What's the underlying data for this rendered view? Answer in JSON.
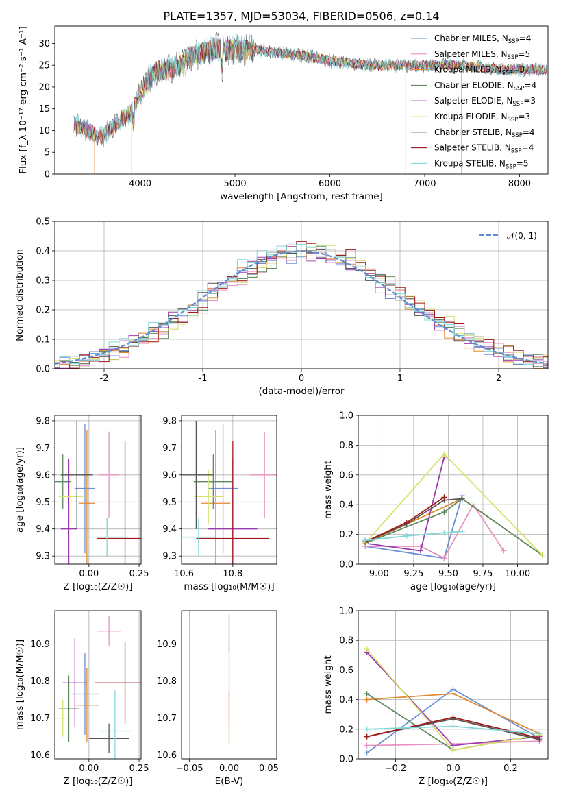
{
  "figure": {
    "title": "PLATE=1357, MJD=53034, FIBERID=0506, z=0.14"
  },
  "colors": [
    "#6a8fd6",
    "#e891c0",
    "#e08a30",
    "#5e8a60",
    "#9a3bb0",
    "#d8e26a",
    "#555555",
    "#a01a1a",
    "#80d8d8"
  ],
  "chart_data": [
    {
      "id": "spectrum",
      "type": "line",
      "xlabel": "wavelength [Angstrom, rest frame]",
      "ylabel": "Flux [f_λ 10⁻¹⁷ erg cm⁻² s⁻¹ A⁻¹]",
      "xlim": [
        3100,
        8300
      ],
      "ylim": [
        0,
        34
      ],
      "xticks": [
        4000,
        5000,
        6000,
        7000,
        8000
      ],
      "yticks": [
        0,
        5,
        10,
        15,
        20,
        25,
        30
      ],
      "grid": false,
      "legend": "upper right",
      "x": [
        3300,
        3400,
        3500,
        3600,
        3700,
        3800,
        3900,
        4000,
        4100,
        4200,
        4300,
        4400,
        4500,
        4600,
        4700,
        4800,
        4900,
        5000,
        5200,
        5400,
        5600,
        5800,
        6000,
        6200,
        6400,
        6600,
        6800,
        7000,
        7200,
        7400,
        7600,
        7800,
        8000,
        8200
      ],
      "y": [
        11.5,
        10.5,
        9.5,
        8.5,
        10.5,
        12.5,
        14,
        19,
        22,
        24,
        24,
        24.5,
        26.5,
        27.5,
        28,
        29,
        28.5,
        28.5,
        28.5,
        28,
        27.5,
        27,
        26,
        25.5,
        25,
        25,
        25,
        25,
        25,
        25,
        24.5,
        24,
        24,
        24
      ],
      "series": [
        {
          "name": "Chabrier MILES, N_SSP=4",
          "label_main": "Chabrier MILES, N",
          "label_sub": "SSP",
          "label_tail": "=4"
        },
        {
          "name": "Salpeter MILES, N_SSP=5",
          "label_main": "Salpeter MILES, N",
          "label_sub": "SSP",
          "label_tail": "=5"
        },
        {
          "name": "Kroupa MILES, N_SSP=3",
          "label_main": "Kroupa MILES, N",
          "label_sub": "SSP",
          "label_tail": "=3"
        },
        {
          "name": "Chabrier ELODIE, N_SSP=4",
          "label_main": "Chabrier ELODIE, N",
          "label_sub": "SSP",
          "label_tail": "=4"
        },
        {
          "name": "Salpeter ELODIE, N_SSP=3",
          "label_main": "Salpeter ELODIE, N",
          "label_sub": "SSP",
          "label_tail": "=3"
        },
        {
          "name": "Kroupa ELODIE, N_SSP=3",
          "label_main": "Kroupa ELODIE, N",
          "label_sub": "SSP",
          "label_tail": "=3"
        },
        {
          "name": "Chabrier STELIB, N_SSP=4",
          "label_main": "Chabrier STELIB, N",
          "label_sub": "SSP",
          "label_tail": "=4"
        },
        {
          "name": "Salpeter STELIB, N_SSP=4",
          "label_main": "Salpeter STELIB, N",
          "label_sub": "SSP",
          "label_tail": "=4"
        },
        {
          "name": "Kroupa STELIB, N_SSP=5",
          "label_main": "Kroupa STELIB, N",
          "label_sub": "SSP",
          "label_tail": "=5"
        }
      ],
      "range_edges": [
        {
          "series": 2,
          "x": 3520
        },
        {
          "series": 5,
          "x": 3910
        },
        {
          "series": 8,
          "x": 6800
        },
        {
          "series": 2,
          "x": 7390
        }
      ]
    },
    {
      "id": "residuals",
      "type": "line",
      "xlabel": "(data-model)/error",
      "ylabel": "Normed distribution",
      "xlim": [
        -2.5,
        2.5
      ],
      "ylim": [
        0,
        0.5
      ],
      "xticks": [
        -2,
        -1,
        0,
        1,
        2
      ],
      "yticks": [
        0.0,
        0.1,
        0.2,
        0.3,
        0.4,
        0.5
      ],
      "grid": true,
      "legend": "upper right",
      "legend_label": "𝒩(0, 1)",
      "bin_width": 0.1,
      "note": "histograms approximately follow the standard normal curve"
    },
    {
      "id": "age-vs-Z",
      "type": "scatter",
      "xlabel": "Z [log₁₀(Z/Z☉)]",
      "ylabel": "age [log₁₀(age/yr)]",
      "xlim": [
        -0.17,
        0.26
      ],
      "ylim": [
        9.27,
        9.82
      ],
      "xticks": [
        -0.0,
        0.25
      ],
      "xtick_labels": [
        "0.00",
        "0.25"
      ],
      "yticks": [
        9.3,
        9.4,
        9.5,
        9.6,
        9.7,
        9.8
      ],
      "grid": true,
      "points": [
        {
          "x": -0.02,
          "y": 9.55,
          "xerr": 0.05,
          "yerr": 0.24
        },
        {
          "x": 0.1,
          "y": 9.6,
          "xerr": 0.05,
          "yerr": 0.16
        },
        {
          "x": -0.01,
          "y": 9.495,
          "xerr": 0.04,
          "yerr": 0.27
        },
        {
          "x": -0.13,
          "y": 9.575,
          "xerr": 0.04,
          "yerr": 0.1
        },
        {
          "x": -0.1,
          "y": 9.4,
          "xerr": 0.04,
          "yerr": 0.26
        },
        {
          "x": -0.09,
          "y": 9.52,
          "xerr": 0.06,
          "yerr": 0.1
        },
        {
          "x": -0.06,
          "y": 9.6,
          "xerr": 0.08,
          "yerr": 0.2
        },
        {
          "x": 0.18,
          "y": 9.365,
          "xerr": 0.14,
          "yerr": 0.36
        },
        {
          "x": 0.09,
          "y": 9.37,
          "xerr": 0.11,
          "yerr": 0.07
        }
      ]
    },
    {
      "id": "age-vs-mass",
      "type": "scatter",
      "xlabel": "mass [log₁₀(M/M☉)]",
      "ylabel": "",
      "xlim": [
        10.59,
        10.98
      ],
      "ylim": [
        9.27,
        9.82
      ],
      "xticks": [
        10.6,
        10.8
      ],
      "yticks": [
        9.3,
        9.4,
        9.5,
        9.6,
        9.7,
        9.8
      ],
      "grid": true,
      "points": [
        {
          "x": 10.76,
          "y": 9.55,
          "xerr": 0.06,
          "yerr": 0.24
        },
        {
          "x": 10.93,
          "y": 9.6,
          "xerr": 0.06,
          "yerr": 0.16
        },
        {
          "x": 10.73,
          "y": 9.495,
          "xerr": 0.06,
          "yerr": 0.27
        },
        {
          "x": 10.72,
          "y": 9.575,
          "xerr": 0.08,
          "yerr": 0.1
        },
        {
          "x": 10.8,
          "y": 9.4,
          "xerr": 0.1,
          "yerr": 0.26
        },
        {
          "x": 10.7,
          "y": 9.52,
          "xerr": 0.06,
          "yerr": 0.1
        },
        {
          "x": 10.65,
          "y": 9.6,
          "xerr": 0.07,
          "yerr": 0.2
        },
        {
          "x": 10.8,
          "y": 9.365,
          "xerr": 0.15,
          "yerr": 0.36
        },
        {
          "x": 10.66,
          "y": 9.37,
          "xerr": 0.07,
          "yerr": 0.07
        }
      ]
    },
    {
      "id": "weight-vs-age",
      "type": "line",
      "xlabel": "age  [log₁₀(age/yr)]",
      "ylabel": "mass weight",
      "xlim": [
        8.85,
        10.22
      ],
      "ylim": [
        0,
        1.0
      ],
      "xticks": [
        9.0,
        9.25,
        9.5,
        9.75,
        10.0
      ],
      "xtick_labels": [
        "9.00",
        "9.25",
        "9.50",
        "9.75",
        "10.00"
      ],
      "yticks": [
        0.0,
        0.2,
        0.4,
        0.6,
        0.8,
        1.0
      ],
      "grid": true,
      "series": [
        {
          "x": [
            8.9,
            9.47,
            9.6
          ],
          "y": [
            0.12,
            0.04,
            0.46
          ]
        },
        {
          "x": [
            8.9,
            9.3,
            9.47,
            9.68,
            9.9
          ],
          "y": [
            0.12,
            0.12,
            0.04,
            0.4,
            0.09
          ]
        },
        {
          "x": [
            8.9,
            9.6,
            10.18
          ],
          "y": [
            0.14,
            0.44,
            0.06
          ]
        },
        {
          "x": [
            8.9,
            9.47,
            9.6,
            10.18
          ],
          "y": [
            0.14,
            0.35,
            0.44,
            0.06
          ]
        },
        {
          "x": [
            8.9,
            9.3,
            9.47
          ],
          "y": [
            0.14,
            0.09,
            0.72
          ]
        },
        {
          "x": [
            8.9,
            9.47,
            10.18
          ],
          "y": [
            0.14,
            0.74,
            0.06
          ]
        },
        {
          "x": [
            8.9,
            9.2,
            9.47,
            9.6
          ],
          "y": [
            0.15,
            0.27,
            0.43,
            0.44
          ]
        },
        {
          "x": [
            8.9,
            9.2,
            9.47
          ],
          "y": [
            0.15,
            0.28,
            0.45
          ]
        },
        {
          "x": [
            8.9,
            9.2,
            9.47,
            9.6
          ],
          "y": [
            0.16,
            0.19,
            0.21,
            0.22
          ]
        }
      ]
    },
    {
      "id": "mass-vs-Z",
      "type": "scatter",
      "xlabel": "Z [log₁₀(Z/Z☉)]",
      "ylabel": "mass [log₁₀(M/M☉)]",
      "xlim": [
        -0.17,
        0.26
      ],
      "ylim": [
        10.59,
        10.99
      ],
      "xticks": [
        0.0,
        0.25
      ],
      "xtick_labels": [
        "0.00",
        "0.25"
      ],
      "yticks": [
        10.6,
        10.7,
        10.8,
        10.9
      ],
      "grid": true,
      "points": [
        {
          "x": -0.02,
          "y": 10.765,
          "xerr": 0.07,
          "yerr": 0.11
        },
        {
          "x": 0.1,
          "y": 10.935,
          "xerr": 0.06,
          "yerr": 0.04
        },
        {
          "x": -0.01,
          "y": 10.735,
          "xerr": 0.06,
          "yerr": 0.1
        },
        {
          "x": -0.1,
          "y": 10.725,
          "xerr": 0.05,
          "yerr": 0.09
        },
        {
          "x": -0.07,
          "y": 10.795,
          "xerr": 0.06,
          "yerr": 0.12
        },
        {
          "x": -0.13,
          "y": 10.7,
          "xerr": 0.04,
          "yerr": 0.05
        },
        {
          "x": 0.1,
          "y": 10.645,
          "xerr": 0.1,
          "yerr": 0.04
        },
        {
          "x": 0.18,
          "y": 10.795,
          "xerr": 0.15,
          "yerr": 0.11
        },
        {
          "x": 0.13,
          "y": 10.665,
          "xerr": 0.08,
          "yerr": 0.11
        }
      ]
    },
    {
      "id": "mass-vs-ebv",
      "type": "scatter",
      "xlabel": "E(B-V)",
      "ylabel": "",
      "xlim": [
        -0.06,
        0.06
      ],
      "ylim": [
        10.59,
        10.99
      ],
      "xticks": [
        -0.05,
        0.0,
        0.05
      ],
      "xtick_labels": [
        "−0.05",
        "0.00",
        "0.05"
      ],
      "yticks": [
        10.6,
        10.7,
        10.8,
        10.9
      ],
      "grid": true,
      "points": [
        {
          "x": 0.0,
          "y": 10.93,
          "yerr": 0.05
        },
        {
          "x": 0.0,
          "y": 10.8,
          "yerr": 0.11
        },
        {
          "x": 0.0,
          "y": 10.7,
          "yerr": 0.07
        }
      ]
    },
    {
      "id": "weight-vs-Z",
      "type": "line",
      "xlabel": "Z [log₁₀(Z/Z☉)]",
      "ylabel": "mass weight",
      "xlim": [
        -0.33,
        0.33
      ],
      "ylim": [
        0,
        1.0
      ],
      "xticks": [
        -0.2,
        0.0,
        0.2
      ],
      "xtick_labels": [
        "−0.2",
        "0.0",
        "0.2"
      ],
      "yticks": [
        0.0,
        0.2,
        0.4,
        0.6,
        0.8,
        1.0
      ],
      "grid": true,
      "series": [
        {
          "x": [
            -0.3,
            0.0,
            0.3
          ],
          "y": [
            0.04,
            0.47,
            0.14
          ]
        },
        {
          "x": [
            -0.3,
            0.0,
            0.3
          ],
          "y": [
            0.09,
            0.1,
            0.12
          ]
        },
        {
          "x": [
            -0.3,
            0.0,
            0.3
          ],
          "y": [
            0.4,
            0.44,
            0.17
          ]
        },
        {
          "x": [
            -0.3,
            0.0,
            0.3
          ],
          "y": [
            0.44,
            0.06,
            0.16
          ]
        },
        {
          "x": [
            -0.3,
            0.0,
            0.3
          ],
          "y": [
            0.72,
            0.09,
            0.15
          ]
        },
        {
          "x": [
            -0.3,
            0.0,
            0.3
          ],
          "y": [
            0.74,
            0.06,
            0.16
          ]
        },
        {
          "x": [
            -0.3,
            0.0,
            0.3
          ],
          "y": [
            0.15,
            0.27,
            0.13
          ]
        },
        {
          "x": [
            -0.3,
            0.0,
            0.3
          ],
          "y": [
            0.15,
            0.28,
            0.14
          ]
        },
        {
          "x": [
            -0.3,
            0.0,
            0.3
          ],
          "y": [
            0.2,
            0.22,
            0.17
          ]
        }
      ]
    }
  ]
}
